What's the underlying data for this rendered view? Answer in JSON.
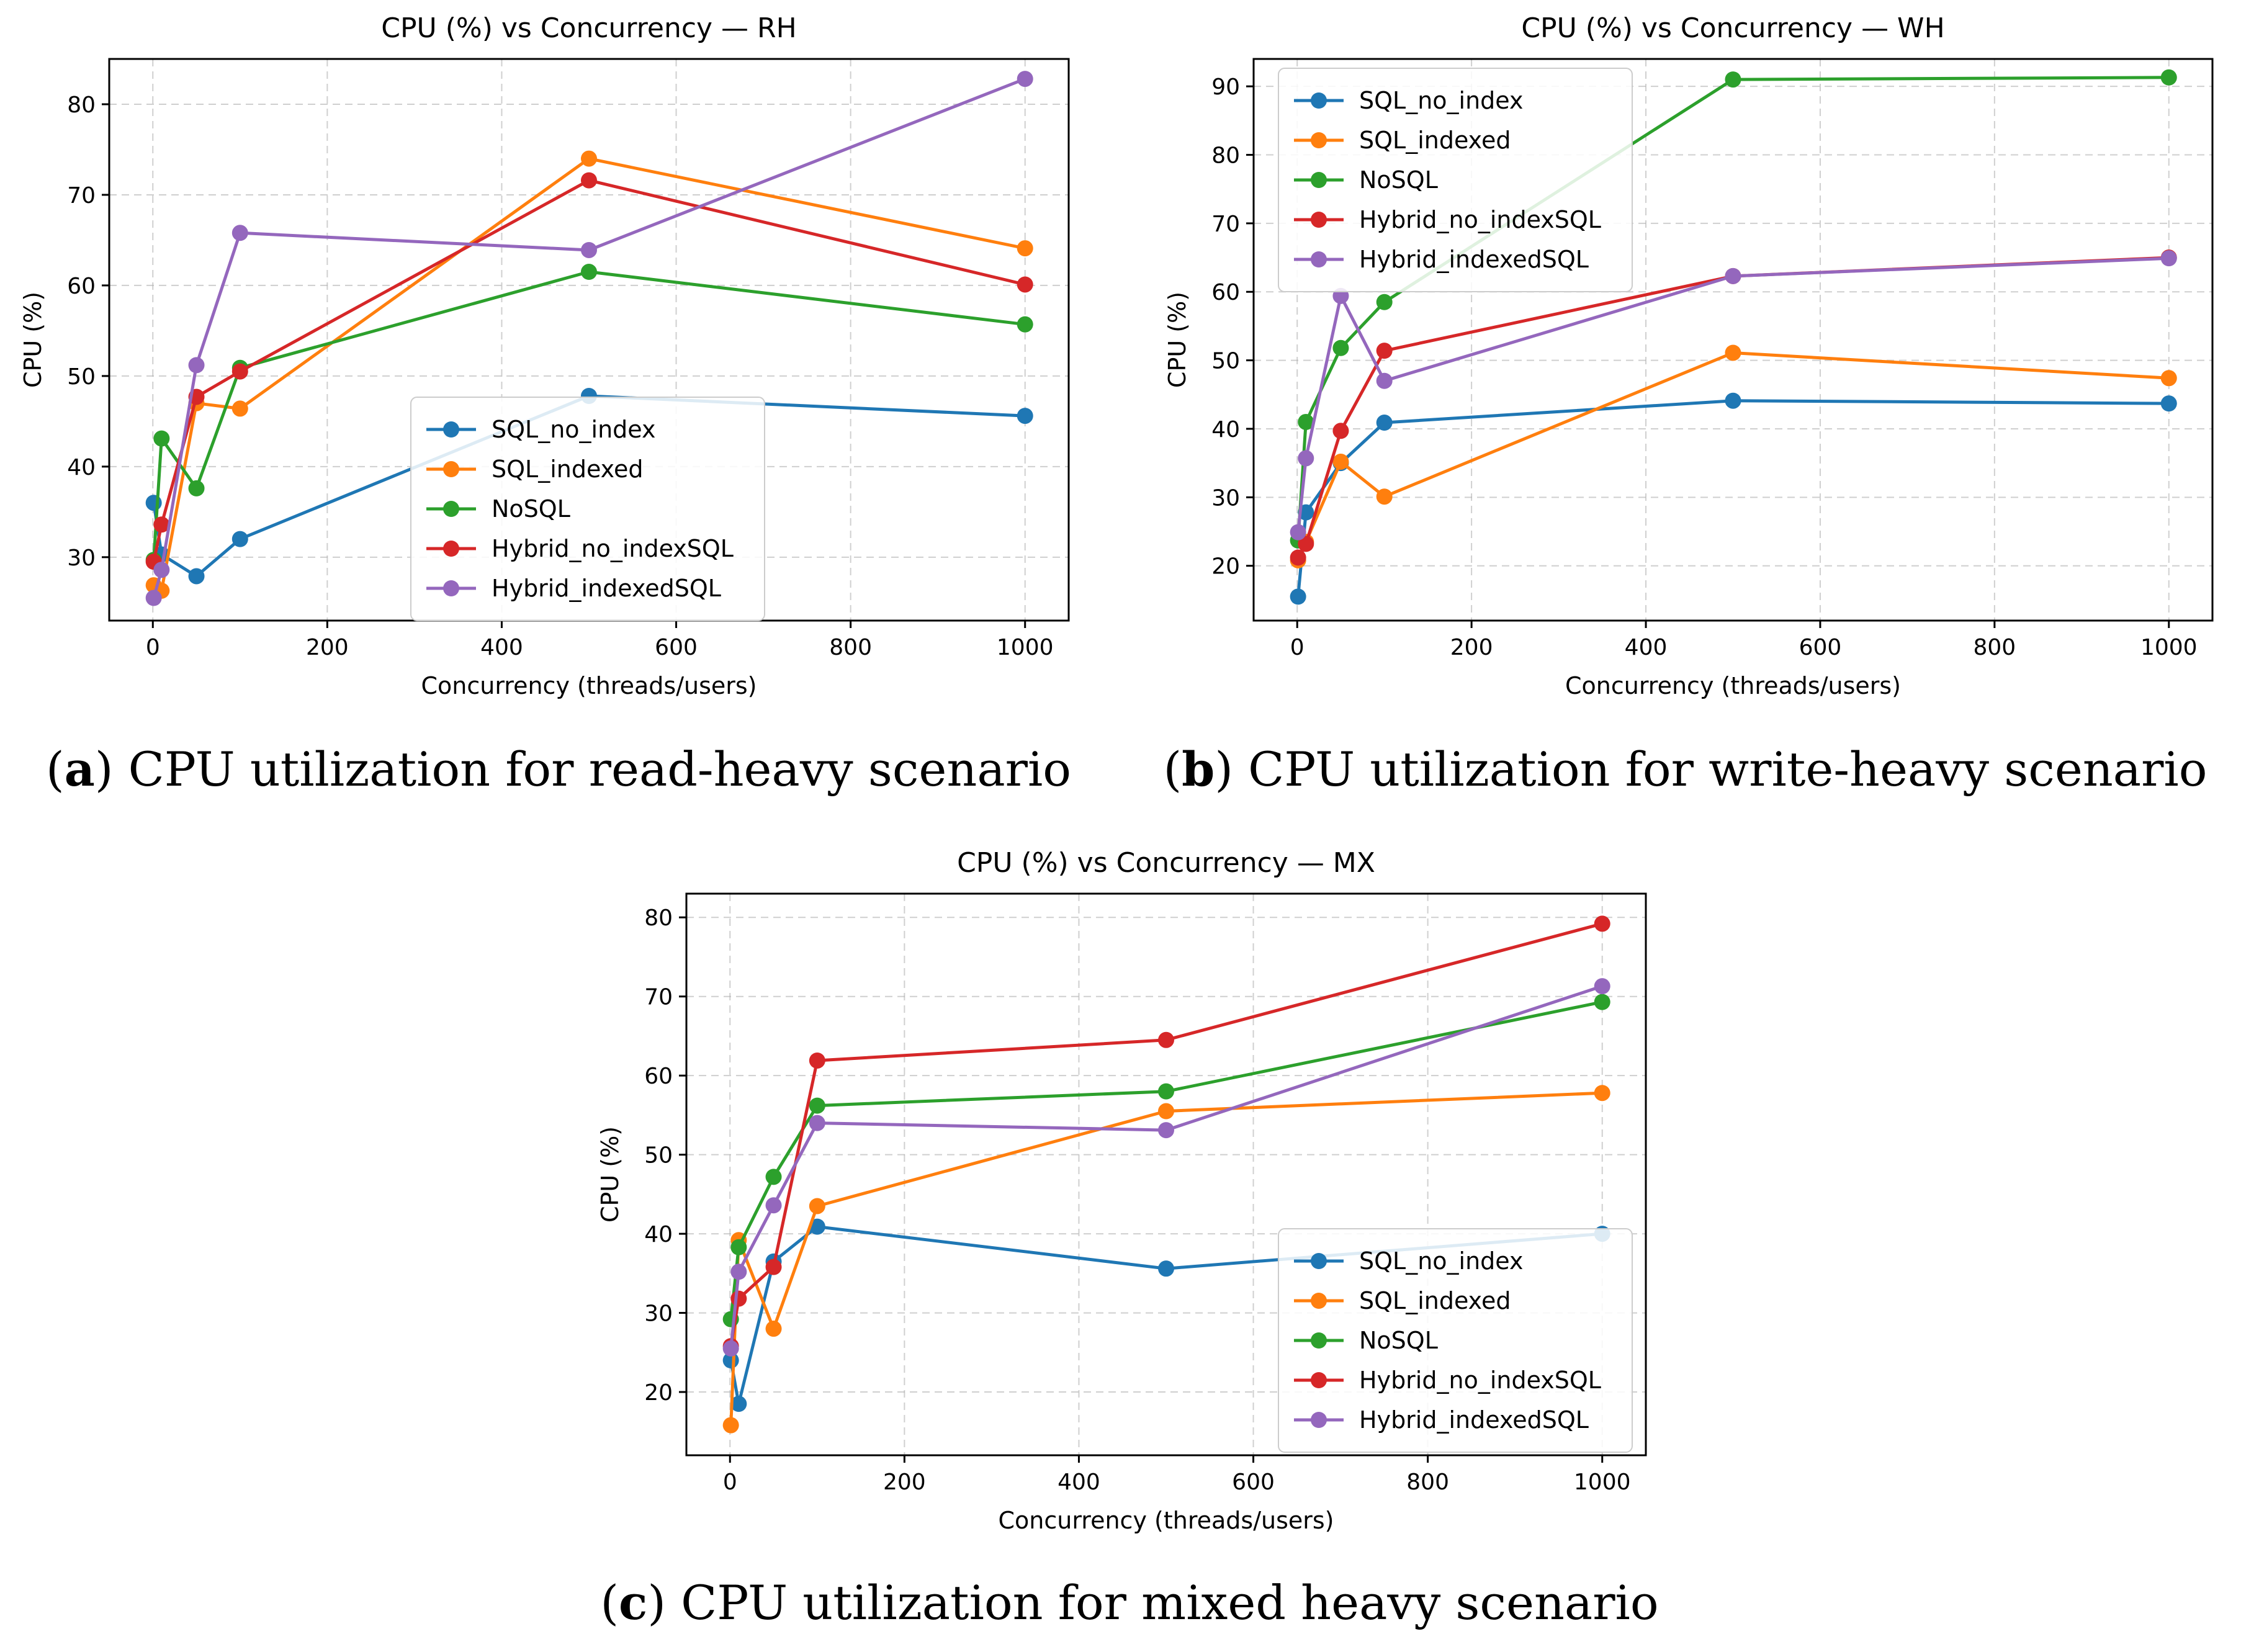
{
  "chart_data": [
    {
      "type": "line",
      "title": "CPU (%) vs Concurrency — RH",
      "xlabel": "Concurrency (threads/users)",
      "ylabel": "CPU (%)",
      "xlim": [
        -50,
        1050
      ],
      "ylim": [
        23,
        85
      ],
      "xticks": [
        0,
        200,
        400,
        600,
        800,
        1000
      ],
      "yticks": [
        30,
        40,
        50,
        60,
        70,
        80
      ],
      "grid": true,
      "legend": "lower-center",
      "x": [
        1,
        10,
        50,
        100,
        500,
        1000
      ],
      "series": [
        {
          "name": "SQL_no_index",
          "color": "#1f77b4",
          "values": [
            36.0,
            30.3,
            27.9,
            32.0,
            47.8,
            45.6
          ]
        },
        {
          "name": "SQL_indexed",
          "color": "#ff7f0e",
          "values": [
            26.9,
            26.3,
            47.0,
            46.4,
            74.0,
            64.1
          ]
        },
        {
          "name": "NoSQL",
          "color": "#2ca02c",
          "values": [
            29.7,
            43.1,
            37.6,
            50.9,
            61.5,
            55.7
          ]
        },
        {
          "name": "Hybrid_no_indexSQL",
          "color": "#d62728",
          "values": [
            29.5,
            33.6,
            47.7,
            50.5,
            71.6,
            60.1
          ]
        },
        {
          "name": "Hybrid_indexedSQL",
          "color": "#9467bd",
          "values": [
            25.5,
            28.6,
            51.2,
            65.8,
            63.9,
            82.8
          ]
        }
      ],
      "caption_label": "a",
      "caption_text": "CPU utilization for read-heavy scenario"
    },
    {
      "type": "line",
      "title": "CPU (%) vs Concurrency — WH",
      "xlabel": "Concurrency (threads/users)",
      "ylabel": "CPU (%)",
      "xlim": [
        -50,
        1050
      ],
      "ylim": [
        12,
        94
      ],
      "xticks": [
        0,
        200,
        400,
        600,
        800,
        1000
      ],
      "yticks": [
        20,
        30,
        40,
        50,
        60,
        70,
        80,
        90
      ],
      "grid": true,
      "legend": "upper-left",
      "x": [
        1,
        10,
        50,
        100,
        500,
        1000
      ],
      "series": [
        {
          "name": "SQL_no_index",
          "color": "#1f77b4",
          "values": [
            15.5,
            27.8,
            35.0,
            40.9,
            44.1,
            43.7
          ]
        },
        {
          "name": "SQL_indexed",
          "color": "#ff7f0e",
          "values": [
            20.8,
            23.5,
            35.2,
            30.1,
            51.1,
            47.4
          ]
        },
        {
          "name": "NoSQL",
          "color": "#2ca02c",
          "values": [
            23.7,
            41.0,
            51.8,
            58.5,
            91.0,
            91.3
          ]
        },
        {
          "name": "Hybrid_no_indexSQL",
          "color": "#d62728",
          "values": [
            21.2,
            23.2,
            39.7,
            51.4,
            62.3,
            65.0
          ]
        },
        {
          "name": "Hybrid_indexedSQL",
          "color": "#9467bd",
          "values": [
            24.9,
            35.7,
            59.4,
            47.0,
            62.3,
            64.9
          ]
        }
      ],
      "caption_label": "b",
      "caption_text": "CPU utilization for write-heavy scenario"
    },
    {
      "type": "line",
      "title": "CPU (%) vs Concurrency — MX",
      "xlabel": "Concurrency (threads/users)",
      "ylabel": "CPU (%)",
      "xlim": [
        -50,
        1050
      ],
      "ylim": [
        12,
        83
      ],
      "xticks": [
        0,
        200,
        400,
        600,
        800,
        1000
      ],
      "yticks": [
        20,
        30,
        40,
        50,
        60,
        70,
        80
      ],
      "grid": true,
      "legend": "lower-right",
      "x": [
        1,
        10,
        50,
        100,
        500,
        1000
      ],
      "series": [
        {
          "name": "SQL_no_index",
          "color": "#1f77b4",
          "values": [
            24.0,
            18.5,
            36.5,
            40.9,
            35.6,
            40.0
          ]
        },
        {
          "name": "SQL_indexed",
          "color": "#ff7f0e",
          "values": [
            15.8,
            39.2,
            28.0,
            43.5,
            55.5,
            57.8
          ]
        },
        {
          "name": "NoSQL",
          "color": "#2ca02c",
          "values": [
            29.2,
            38.3,
            47.2,
            56.2,
            58.0,
            69.3
          ]
        },
        {
          "name": "Hybrid_no_indexSQL",
          "color": "#d62728",
          "values": [
            25.8,
            31.8,
            35.8,
            61.9,
            64.5,
            79.2
          ]
        },
        {
          "name": "Hybrid_indexedSQL",
          "color": "#9467bd",
          "values": [
            25.5,
            35.2,
            43.6,
            54.0,
            53.1,
            71.3
          ]
        }
      ],
      "caption_label": "c",
      "caption_text": "CPU utilization for mixed heavy scenario"
    }
  ]
}
